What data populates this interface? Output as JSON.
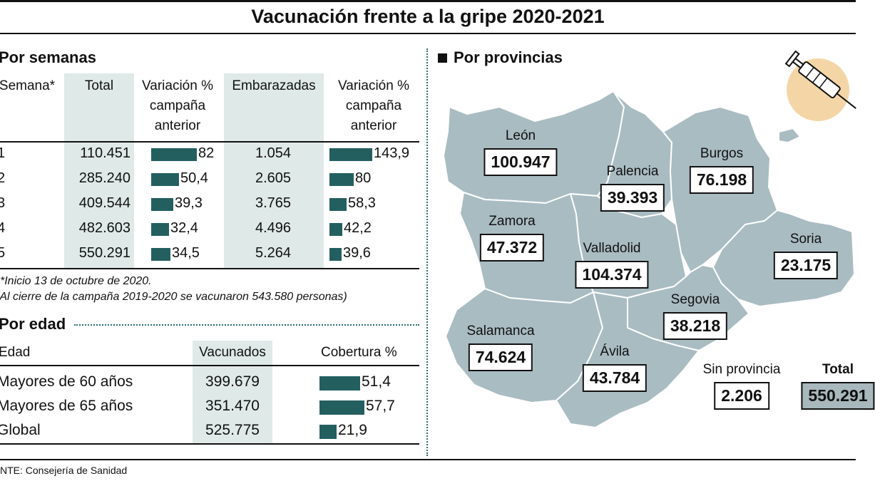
{
  "title": "Vacunación frente a la gripe 2020-2021",
  "source": "NTE: Consejería de Sanidad",
  "colors": {
    "bar": "#245f5f",
    "map_fill": "#a9bcc2",
    "shade": "#dfe9e8",
    "dots": "#2a6b6b"
  },
  "icons": [
    "syringe-icon",
    "square-bullet-icon"
  ],
  "chart_data": [
    {
      "type": "table",
      "title": "Por semanas",
      "columns": [
        "Semana*",
        "Total",
        "Variación % campaña anterior",
        "Embarazadas",
        "Variación % campaña anterior"
      ],
      "rows": [
        {
          "semana": "1",
          "total": "110.451",
          "var_total": 82,
          "var_total_label": "82",
          "embarazadas": "1.054",
          "var_emb": 143.9,
          "var_emb_label": "143,9"
        },
        {
          "semana": "2",
          "total": "285.240",
          "var_total": 50.4,
          "var_total_label": "50,4",
          "embarazadas": "2.605",
          "var_emb": 80,
          "var_emb_label": "80"
        },
        {
          "semana": "3",
          "total": "409.544",
          "var_total": 39.3,
          "var_total_label": "39,3",
          "embarazadas": "3.765",
          "var_emb": 58.3,
          "var_emb_label": "58,3"
        },
        {
          "semana": "4",
          "total": "482.603",
          "var_total": 32.4,
          "var_total_label": "32,4",
          "embarazadas": "4.496",
          "var_emb": 42.2,
          "var_emb_label": "42,2"
        },
        {
          "semana": "5",
          "total": "550.291",
          "var_total": 34.5,
          "var_total_label": "34,5",
          "embarazadas": "5.264",
          "var_emb": 39.6,
          "var_emb_label": "39,6"
        }
      ],
      "notes": [
        "*Inicio 13 de octubre de 2020.",
        "(Al cierre de la campaña 2019-2020 se vacunaron 543.580 personas)"
      ]
    },
    {
      "type": "table",
      "title": "Por edad",
      "columns": [
        "Edad",
        "Vacunados",
        "Cobertura %"
      ],
      "rows": [
        {
          "edad": "Mayores de 60 años",
          "vacunados": "399.679",
          "cobertura": 51.4,
          "cobertura_label": "51,4"
        },
        {
          "edad": "Mayores de 65 años",
          "vacunados": "351.470",
          "cobertura": 57.7,
          "cobertura_label": "57,7"
        },
        {
          "edad": "Global",
          "vacunados": "525.775",
          "cobertura": 21.9,
          "cobertura_label": "21,9"
        }
      ]
    },
    {
      "type": "map",
      "title": "Por provincias",
      "provinces": [
        {
          "name": "León",
          "value": "100.947"
        },
        {
          "name": "Palencia",
          "value": "39.393"
        },
        {
          "name": "Burgos",
          "value": "76.198"
        },
        {
          "name": "Zamora",
          "value": "47.372"
        },
        {
          "name": "Valladolid",
          "value": "104.374"
        },
        {
          "name": "Soria",
          "value": "23.175"
        },
        {
          "name": "Segovia",
          "value": "38.218"
        },
        {
          "name": "Salamanca",
          "value": "74.624"
        },
        {
          "name": "Ávila",
          "value": "43.784"
        },
        {
          "name": "Sin provincia",
          "value": "2.206"
        },
        {
          "name": "Total",
          "value": "550.291"
        }
      ]
    }
  ]
}
